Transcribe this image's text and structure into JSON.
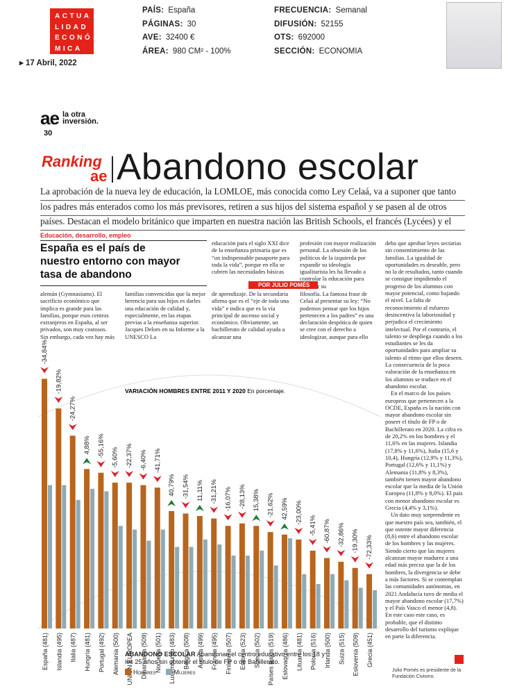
{
  "header": {
    "logo": [
      "ACTUA",
      "LIDAD",
      "ECONÓ",
      "MICA"
    ],
    "date": "17 Abril, 2022",
    "fields_left": [
      {
        "label": "PAÍS:",
        "value": "España"
      },
      {
        "label": "PÁGINAS:",
        "value": "30"
      },
      {
        "label": "AVE:",
        "value": "32400 €"
      },
      {
        "label": "ÁREA:",
        "value": "980 CM² - 100%"
      }
    ],
    "fields_right": [
      {
        "label": "FRECUENCIA:",
        "value": "Semanal"
      },
      {
        "label": "DIFUSIÓN:",
        "value": "52155"
      },
      {
        "label": "OTS:",
        "value": "692000"
      },
      {
        "label": "SECCIÓN:",
        "value": "ECONOMIA"
      }
    ]
  },
  "article": {
    "brand": "ae",
    "brand_tagline": "la otra inversión.",
    "page_number": "30",
    "ranking": "Ranking",
    "ranking_brand": "ae",
    "title": "Abandono escolar",
    "lead": "La aprobación de la nueva ley de educación, la LOMLOE, más conocida como Ley Celaá, va a suponer que tanto los padres más enterados como los más previsores, retiren a sus hijos del sistema español y se pasen al de otros países. Destacan el modelo británico que imparten en nuestra nación las British Schools, el francés (Lycées) y el",
    "kicker": "Educación, desarrollo, empleo",
    "headline": "España es el país de nuestro entorno con mayor tasa de abandono",
    "byline": "POR JULIO POMÉS",
    "col1": "alemán (Gymnasiums). El sacrificio económico que implica es grande para las familias, porque esos centros extranjeros en España, al ser privados, son muy costosos. Sin embargo, cada vez hay más",
    "col2": "familias convencidas que la mejor herencia para sus hijos es darles una educación de calidad y, especialmente, en las etapas previas a la enseñanza superior. Jacques Delors en su Informe a la UNESCO La",
    "col3a": "educación para el siglo XXI dice de la enseñanza primaria que es “un indispensable pasaporte para toda la vida”, porque en ella se cubren las necesidades básicas",
    "col3b": "de aprendizaje. De la secundaria afirma que es el “eje de toda una vida” e indica que es la vía principal de ascenso social y económico. Obviamente, un bachillerato de calidad ayuda a alcanzar una",
    "col4a": "profesión con mayor realización personal. La obsesión de los políticos de la izquierda por expandir su ideología igualitarista les ha llevado a controlar la educación para imponer su",
    "col4b": "filosofía. La famosa frase de Celaá al presentar su ley: “No podemos pensar que los hijos pertenecen a los padres” es una declaración despótica de quien se cree con el derecho a ideologizar, aunque para ello",
    "col5": [
      "deba que aprobar leyes sectarias sin consentimiento de las familias. La igualdad de oportunidades es deseable, pero no la de resultados, tanto cuando se consigue impidiendo el progreso de los alumnos con mayor potencial, como bajando el nivel. La falta de reconocimiento al esfuerzo desincentiva la laboriosidad y perjudica el crecimiento intelectual. Por el contrario, el talento se despliega cuando a los estudiantes se les da oportunidades para ampliar su talento al ritmo que ellos deseen. La consecuencia de la poca valoración de la enseñanza en los alumnos se traduce en el abandono escolar.",
      "En el marco de los países europeos que pertenecen a la OCDE, España es la nación con mayor abandono escolar sin poseer el título de FP o de Bachillerato en 2020. La cifra es de 20,2% en los hombres y el 11,6% en las mujeres. Islandia (17,8% y 11,6%), Italia (15,6 y 10,4), Hungría (12,9% y 11,3%), Portugal (12,6% y 11,1%) y Alemania (11,8% y 8,3%), también tienen mayor abandono escolar que la media de la Unión Europea (11,8% y 8,0%). El país con menor abandono escolar es Grecia (4,4% y 3,1%).",
      "Un dato muy sorprendente es que nuestro país sea, también, el que ostente mayor diferencia (8,6) entre el abandono escolar de los hombres y las mujeres. Siendo cierto que las mujeres alcanzan mayor madurez a una edad más precoz que la de los hombres, la divergencia se debe a más factores. Si se contemplan las comunidades autónomas, en 2021 Andalucía tuvo de media el mayor abandono escolar (17,7%) y el País Vasco el menor (4,8). En este caso este caso, es probable, que el distinto desarrollo del turismo explique en parte la diferencia."
    ],
    "footnote": "Julio Pomés es presidente de la Fundación Civismo."
  },
  "chart_data": {
    "type": "bar",
    "title": "VARIACIÓN HOMBRES ENTRE 2011 Y 2020",
    "subtitle": "En porcentaje.",
    "note_title": "ABANDONO ESCOLAR",
    "note": "Abandonan el centro educativo entre los 18 y los 25 años sin obtener el título de FP o de Bahillerato.",
    "categories": [
      "España (481)",
      "Islandia (495)",
      "Italia (487)",
      "Hungría (481)",
      "Portugal (492)",
      "Alemania (500)",
      "UNIÓN EUROPEA",
      "Dinamarca (509)",
      "Noruega (501)",
      "Luxemburgo (483)",
      "Bélgica (508)",
      "Austria (499)",
      "Francia (495)",
      "Finlandia (507)",
      "Estonia (523)",
      "Suecia (502)",
      "Países Bajos (519)",
      "Eslovaquia (486)",
      "Lituania (481)",
      "Polonia (516)",
      "Irlanda (500)",
      "Suiza (515)",
      "Eslovenia (509)",
      "Grecia (451)"
    ],
    "series": [
      {
        "name": "Hombres",
        "color": "#b8651e",
        "values": [
          20.2,
          17.8,
          15.6,
          12.9,
          12.6,
          11.8,
          11.8,
          11.6,
          11.4,
          9.5,
          9.3,
          9.1,
          8.9,
          8.3,
          8.5,
          8.3,
          7.8,
          7.6,
          7.2,
          6.3,
          5.7,
          5.4,
          4.9,
          4.4
        ]
      },
      {
        "name": "Mujeres",
        "color": "#8eaab5",
        "values": [
          11.6,
          11.6,
          10.4,
          11.3,
          11.1,
          8.3,
          8.0,
          7.1,
          8.0,
          6.6,
          6.6,
          7.2,
          6.8,
          5.9,
          5.9,
          6.3,
          5.1,
          7.3,
          4.4,
          3.6,
          4.4,
          3.9,
          3.3,
          3.1
        ]
      }
    ],
    "variation": {
      "values": [
        -34.84,
        -19.82,
        -24.27,
        4.88,
        -55.16,
        -5.6,
        -22.37,
        -6.4,
        -41.71,
        40.79,
        -31.54,
        11.11,
        -31.21,
        -16.07,
        -28.13,
        15.38,
        -21.62,
        42.59,
        -23.0,
        -5.41,
        -60.87,
        -32.86,
        -19.3,
        -72.33
      ],
      "value_labels": [
        "-34,84%",
        "-19,82%",
        "-24,27%",
        "4,88%",
        "-55,16%",
        "-5,60%",
        "-22,37%",
        "-6,40%",
        "-41,71%",
        "40,79%",
        "-31,54%",
        "11,11%",
        "-31,21%",
        "-16,07%",
        "-28,13%",
        "15,38%",
        "-21,62%",
        "42,59%",
        "-23,00%",
        "-5,41%",
        "-60,87%",
        "-32,86%",
        "-19,30%",
        "-72,33%"
      ],
      "up_color": "#1e7a34",
      "down_color": "#d9232e"
    }
  }
}
